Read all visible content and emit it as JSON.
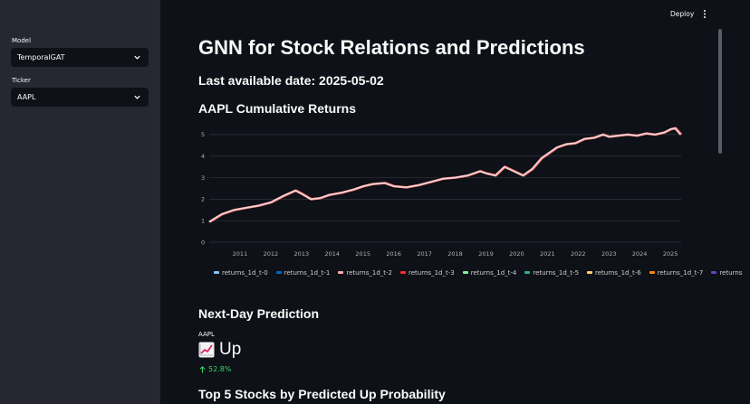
{
  "sidebar": {
    "model": {
      "label": "Model",
      "value": "TemporalGAT"
    },
    "ticker": {
      "label": "Ticker",
      "value": "AAPL"
    }
  },
  "header": {
    "deploy_label": "Deploy"
  },
  "main": {
    "title": "GNN for Stock Relations and Predictions",
    "last_date": "Last available date: 2025-05-02",
    "chart_title": "AAPL Cumulative Returns",
    "prediction_heading": "Next-Day Prediction",
    "metric": {
      "label": "AAPL",
      "value": "Up",
      "delta": "52.8%"
    },
    "top5_heading": "Top 5 Stocks by Predicted Up Probability"
  },
  "chart_data": {
    "type": "line",
    "title": "AAPL Cumulative Returns",
    "xlabel": "",
    "ylabel": "",
    "x_ticks": [
      "2011",
      "2012",
      "2013",
      "2014",
      "2015",
      "2016",
      "2017",
      "2018",
      "2019",
      "2020",
      "2021",
      "2022",
      "2023",
      "2024",
      "2025"
    ],
    "y_ticks": [
      0,
      1,
      2,
      3,
      4,
      5
    ],
    "xlim": [
      2010.0,
      2025.35
    ],
    "ylim": [
      0,
      5.5
    ],
    "grid": true,
    "legend_position": "bottom",
    "series_names": [
      "returns_1d_t-0",
      "returns_1d_t-1",
      "returns_1d_t-2",
      "returns_1d_t-3",
      "returns_1d_t-4",
      "returns_1d_t-5",
      "returns_1d_t-6",
      "returns_1d_t-7",
      "returns"
    ],
    "series_colors": [
      "#83c9ff",
      "#0068c9",
      "#ffabab",
      "#ff2b2b",
      "#7defa1",
      "#29b09d",
      "#ffd16a",
      "#ff8700",
      "#6d3fc0"
    ],
    "x": [
      2010.0,
      2010.4,
      2010.8,
      2011.2,
      2011.6,
      2012.0,
      2012.4,
      2012.8,
      2013.0,
      2013.3,
      2013.6,
      2013.9,
      2014.3,
      2014.7,
      2015.0,
      2015.3,
      2015.7,
      2016.0,
      2016.4,
      2016.8,
      2017.2,
      2017.6,
      2018.0,
      2018.4,
      2018.8,
      2019.0,
      2019.3,
      2019.6,
      2019.9,
      2020.2,
      2020.5,
      2020.8,
      2021.0,
      2021.3,
      2021.6,
      2021.9,
      2022.2,
      2022.5,
      2022.8,
      2023.0,
      2023.3,
      2023.6,
      2023.9,
      2024.2,
      2024.5,
      2024.8,
      2025.0,
      2025.15,
      2025.33
    ],
    "y": [
      0.95,
      1.3,
      1.5,
      1.6,
      1.7,
      1.85,
      2.15,
      2.4,
      2.25,
      2.0,
      2.05,
      2.2,
      2.3,
      2.45,
      2.6,
      2.7,
      2.75,
      2.6,
      2.55,
      2.65,
      2.8,
      2.95,
      3.0,
      3.1,
      3.3,
      3.2,
      3.1,
      3.5,
      3.3,
      3.1,
      3.4,
      3.9,
      4.1,
      4.4,
      4.55,
      4.6,
      4.8,
      4.85,
      5.0,
      4.9,
      4.95,
      5.0,
      4.95,
      5.05,
      5.0,
      5.1,
      5.25,
      5.3,
      5.0
    ]
  }
}
